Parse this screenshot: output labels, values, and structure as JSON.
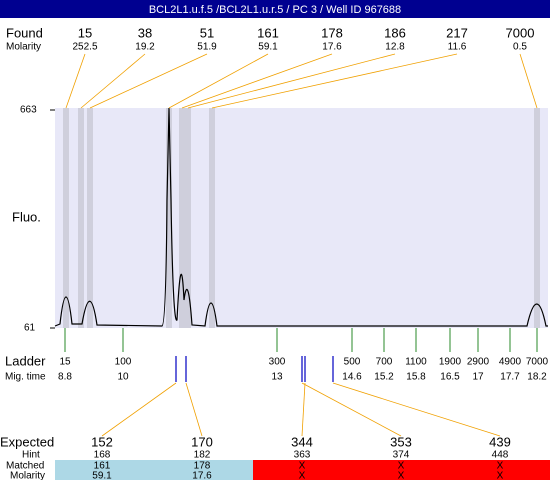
{
  "title": "BCL2L1.u.f.5 /BCL2L1.u.r.5 / PC 3 / Well ID 967688",
  "found": {
    "label": "Found",
    "molarity_label": "Molarity",
    "sizes": [
      15,
      38,
      51,
      161,
      178,
      186,
      217,
      7000
    ],
    "molarity": [
      252.5,
      19.2,
      51.9,
      59.1,
      17.6,
      12.8,
      11.6,
      0.5
    ]
  },
  "y_axis": {
    "label": "Fluo.",
    "max": 663,
    "min": 61
  },
  "ladder": {
    "label": "Ladder",
    "time_label": "Mig. time",
    "sizes": [
      15,
      100,
      300,
      500,
      700,
      1100,
      1900,
      2900,
      4900,
      7000
    ],
    "times": [
      8.8,
      10,
      13,
      14.6,
      15.2,
      15.8,
      16.5,
      17,
      17.7,
      18.2
    ]
  },
  "expected": {
    "label": "Expected",
    "hint_label": "Hint",
    "matched_label": "Matched",
    "molarity_label": "Molarity",
    "sizes": [
      152,
      170,
      344,
      353,
      439
    ],
    "hint": [
      168,
      182,
      363,
      374,
      448
    ],
    "matched": [
      161,
      178,
      "X",
      "X",
      "X"
    ],
    "molarity": [
      59.1,
      17.6,
      "X",
      "X",
      "X"
    ]
  }
}
